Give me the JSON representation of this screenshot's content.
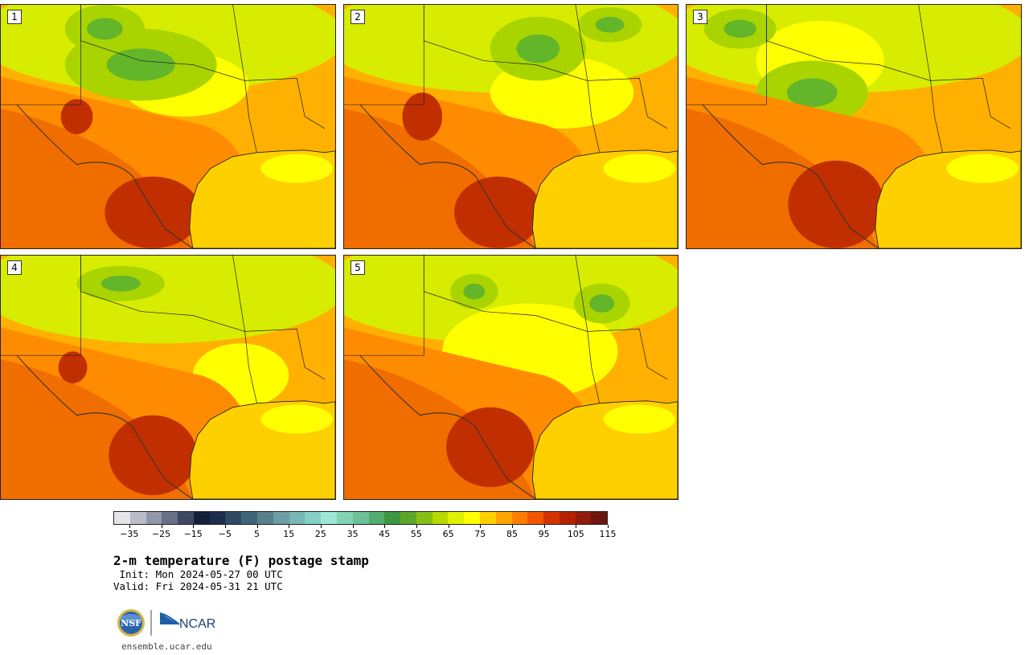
{
  "panels": [
    {
      "label": "1"
    },
    {
      "label": "2"
    },
    {
      "label": "3"
    },
    {
      "label": "4"
    },
    {
      "label": "5"
    }
  ],
  "colorbar": {
    "colors": [
      "#e4e4ea",
      "#b9bcc9",
      "#9397a8",
      "#697189",
      "#3d4864",
      "#14203a",
      "#1c2e4c",
      "#2d4b63",
      "#3e6678",
      "#558089",
      "#6c9ea4",
      "#78b7b6",
      "#86d0c6",
      "#9ee7d7",
      "#84d3b4",
      "#6cc196",
      "#53ad6e",
      "#3f9640",
      "#5da62a",
      "#86bf16",
      "#b7d800",
      "#e1ef00",
      "#ffff00",
      "#ffd000",
      "#ffa500",
      "#ff7e00",
      "#f25700",
      "#d33400",
      "#b32200",
      "#901a0c",
      "#6d160e"
    ],
    "tick_labels": [
      "−35",
      "−25",
      "−15",
      "−5",
      "5",
      "15",
      "25",
      "35",
      "45",
      "55",
      "65",
      "75",
      "85",
      "95",
      "105",
      "115"
    ]
  },
  "title": "2-m temperature (F) postage stamp",
  "init_text": " Init: Mon 2024-05-27 00 UTC",
  "valid_text": "Valid: Fri 2024-05-31 21 UTC",
  "logos": {
    "nsf_text": "NSF",
    "ncar_text": "NCAR"
  },
  "website": "ensemble.ucar.edu",
  "palette": {
    "hot": "#c12f00",
    "warm": "#f06d00",
    "orange": "#ff8c00",
    "amber": "#ffb000",
    "gulf": "#ffd000",
    "yellow": "#ffff00",
    "lime": "#d7ec00",
    "green": "#a9d400",
    "dkgreen": "#63b52a",
    "outline": "#222222"
  }
}
